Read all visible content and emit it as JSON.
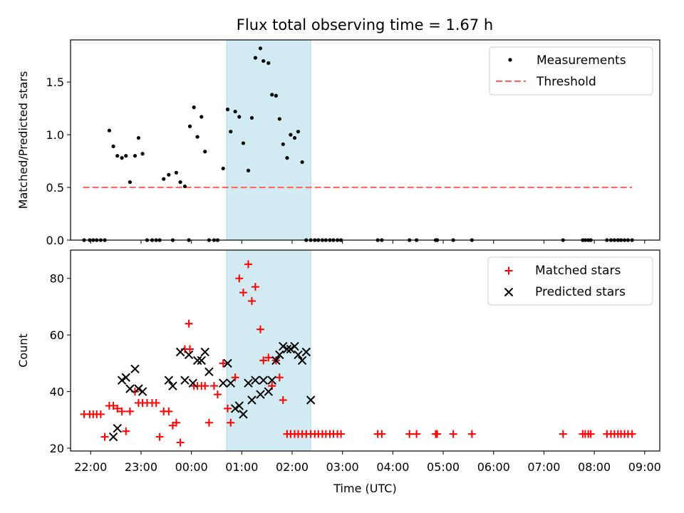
{
  "title": "Flux total observing time = 1.67 h",
  "colors": {
    "shade": "#add8e6",
    "threshold": "#ff6666",
    "matched": "#ff0000",
    "predicted": "#000000",
    "measurements": "#000000"
  },
  "chart_data": [
    {
      "type": "scatter",
      "id": "ratio",
      "ylabel": "Matched/Predicted stars",
      "xlabel": "",
      "xlim": [
        -2.4,
        9.3
      ],
      "ylim": [
        0,
        1.9
      ],
      "yticks": [
        0.0,
        0.5,
        1.0,
        1.5
      ],
      "ytick_labels": [
        "0.0",
        "0.5",
        "1.0",
        "1.5"
      ],
      "shaded_interval": [
        0.7,
        2.37
      ],
      "legend_position": "upper right",
      "legend": {
        "measurements": "Measurements",
        "threshold": "Threshold"
      },
      "threshold": {
        "value": 0.5,
        "x": [
          -2.15,
          8.75
        ]
      },
      "measurements": {
        "x": [
          -2.13,
          -2.02,
          -1.95,
          -1.88,
          -1.8,
          -1.72,
          -1.63,
          -1.55,
          -1.47,
          -1.38,
          -1.3,
          -1.22,
          -1.12,
          -1.05,
          -0.97,
          -0.88,
          -0.78,
          -0.7,
          -0.63,
          -0.55,
          -0.45,
          -0.37,
          -0.3,
          -0.22,
          -0.13,
          -0.05,
          -0.03,
          0.05,
          0.12,
          0.2,
          0.27,
          0.35,
          0.45,
          0.52,
          0.63,
          0.72,
          0.78,
          0.87,
          0.95,
          1.03,
          1.13,
          1.2,
          1.27,
          1.37,
          1.43,
          1.53,
          1.6,
          1.68,
          1.75,
          1.82,
          1.9,
          1.97,
          2.05,
          2.12,
          2.2,
          2.28,
          2.37,
          2.45,
          2.52,
          2.6,
          2.67,
          2.75,
          2.82,
          2.9,
          2.97,
          3.7,
          3.78,
          4.33,
          4.47,
          4.85,
          4.88,
          5.2,
          5.57,
          7.38,
          7.77,
          7.82,
          7.88,
          7.93,
          8.25,
          8.33,
          8.4,
          8.47,
          8.53,
          8.6,
          8.67,
          8.75
        ],
        "y": [
          0,
          0,
          0,
          0,
          0,
          0,
          1.04,
          0.89,
          0.8,
          0.78,
          0.8,
          0.55,
          0.8,
          0.97,
          0.82,
          0,
          0,
          0,
          0,
          0.58,
          0.62,
          0,
          0.64,
          0.55,
          0.51,
          0,
          1.08,
          1.26,
          0.98,
          1.17,
          0.84,
          0,
          0,
          0,
          0.68,
          1.24,
          1.03,
          1.22,
          1.17,
          0.92,
          0.66,
          1.16,
          1.73,
          1.82,
          1.7,
          1.68,
          1.38,
          1.37,
          1.15,
          0.91,
          0.78,
          1.0,
          0.97,
          1.03,
          0.74,
          0,
          0,
          0,
          0,
          0,
          0,
          0,
          0,
          0,
          0,
          0,
          0,
          0,
          0,
          0,
          0,
          0,
          0,
          0,
          0,
          0,
          0,
          0,
          0,
          0,
          0,
          0,
          0,
          0,
          0,
          0
        ]
      }
    },
    {
      "type": "scatter",
      "id": "counts",
      "ylabel": "Count",
      "xlabel": "Time (UTC)",
      "xlim": [
        -2.4,
        9.3
      ],
      "ylim": [
        19,
        90
      ],
      "yticks": [
        20,
        40,
        60,
        80
      ],
      "ytick_labels": [
        "20",
        "40",
        "60",
        "80"
      ],
      "xticks": [
        -2,
        -1,
        0,
        1,
        2,
        3,
        4,
        5,
        6,
        7,
        8,
        9
      ],
      "xtick_labels": [
        "22:00",
        "23:00",
        "00:00",
        "01:00",
        "02:00",
        "03:00",
        "04:00",
        "05:00",
        "06:00",
        "07:00",
        "08:00",
        "09:00"
      ],
      "shaded_interval": [
        0.7,
        2.37
      ],
      "legend_position": "upper right",
      "series": [
        {
          "name": "Matched stars",
          "marker": "plus",
          "x": [
            -2.13,
            -2.02,
            -1.95,
            -1.88,
            -1.8,
            -1.72,
            -1.63,
            -1.55,
            -1.47,
            -1.38,
            -1.3,
            -1.22,
            -1.12,
            -1.05,
            -0.97,
            -0.88,
            -0.78,
            -0.7,
            -0.63,
            -0.55,
            -0.45,
            -0.37,
            -0.3,
            -0.22,
            -0.13,
            -0.05,
            -0.03,
            0.05,
            0.12,
            0.2,
            0.27,
            0.35,
            0.45,
            0.52,
            0.63,
            0.72,
            0.78,
            0.87,
            0.95,
            1.03,
            1.13,
            1.2,
            1.27,
            1.37,
            1.43,
            1.53,
            1.6,
            1.68,
            1.75,
            1.82,
            1.9,
            1.97,
            2.05,
            2.12,
            2.2,
            2.28,
            2.37,
            2.45,
            2.52,
            2.6,
            2.67,
            2.75,
            2.82,
            2.9,
            2.97,
            3.7,
            3.78,
            4.33,
            4.47,
            4.85,
            4.88,
            5.2,
            5.57,
            7.38,
            7.77,
            7.82,
            7.88,
            7.93,
            8.25,
            8.33,
            8.4,
            8.47,
            8.53,
            8.6,
            8.67,
            8.75
          ],
          "y": [
            32,
            32,
            32,
            32,
            32,
            24,
            35,
            35,
            34,
            33,
            26,
            33,
            40,
            36,
            36,
            36,
            36,
            36,
            24,
            33,
            33,
            28,
            29,
            22,
            55,
            64,
            55,
            42,
            42,
            42,
            42,
            29,
            42,
            39,
            50,
            34,
            29,
            45,
            80,
            75,
            85,
            72,
            77,
            62,
            51,
            52,
            42,
            51,
            45,
            37,
            25,
            25,
            25,
            25,
            25,
            25,
            25,
            25,
            25,
            25,
            25,
            25,
            25,
            25,
            25,
            25,
            25,
            25,
            25,
            25,
            25,
            25,
            25,
            25,
            25,
            25,
            25,
            25,
            25,
            25,
            25,
            25,
            25,
            25,
            25,
            25
          ]
        },
        {
          "name": "Predicted stars",
          "marker": "x",
          "x": [
            -1.55,
            -1.47,
            -1.38,
            -1.3,
            -1.22,
            -1.12,
            -1.05,
            -0.97,
            -0.45,
            -0.37,
            -0.22,
            -0.13,
            -0.05,
            0.03,
            0.12,
            0.2,
            0.27,
            0.35,
            0.63,
            0.72,
            0.78,
            0.87,
            0.95,
            1.03,
            1.13,
            1.2,
            1.27,
            1.37,
            1.43,
            1.53,
            1.6,
            1.68,
            1.75,
            1.82,
            1.9,
            1.97,
            2.05,
            2.12,
            2.2,
            2.28,
            2.37
          ],
          "y": [
            24,
            27,
            44,
            45,
            41,
            48,
            41,
            40,
            44,
            42,
            54,
            44,
            53,
            43,
            51,
            51,
            54,
            47,
            43,
            50,
            43,
            34,
            35,
            32,
            43,
            37,
            44,
            39,
            44,
            40,
            44,
            51,
            53,
            56,
            55,
            55,
            56,
            53,
            51,
            54,
            37
          ]
        }
      ]
    }
  ]
}
